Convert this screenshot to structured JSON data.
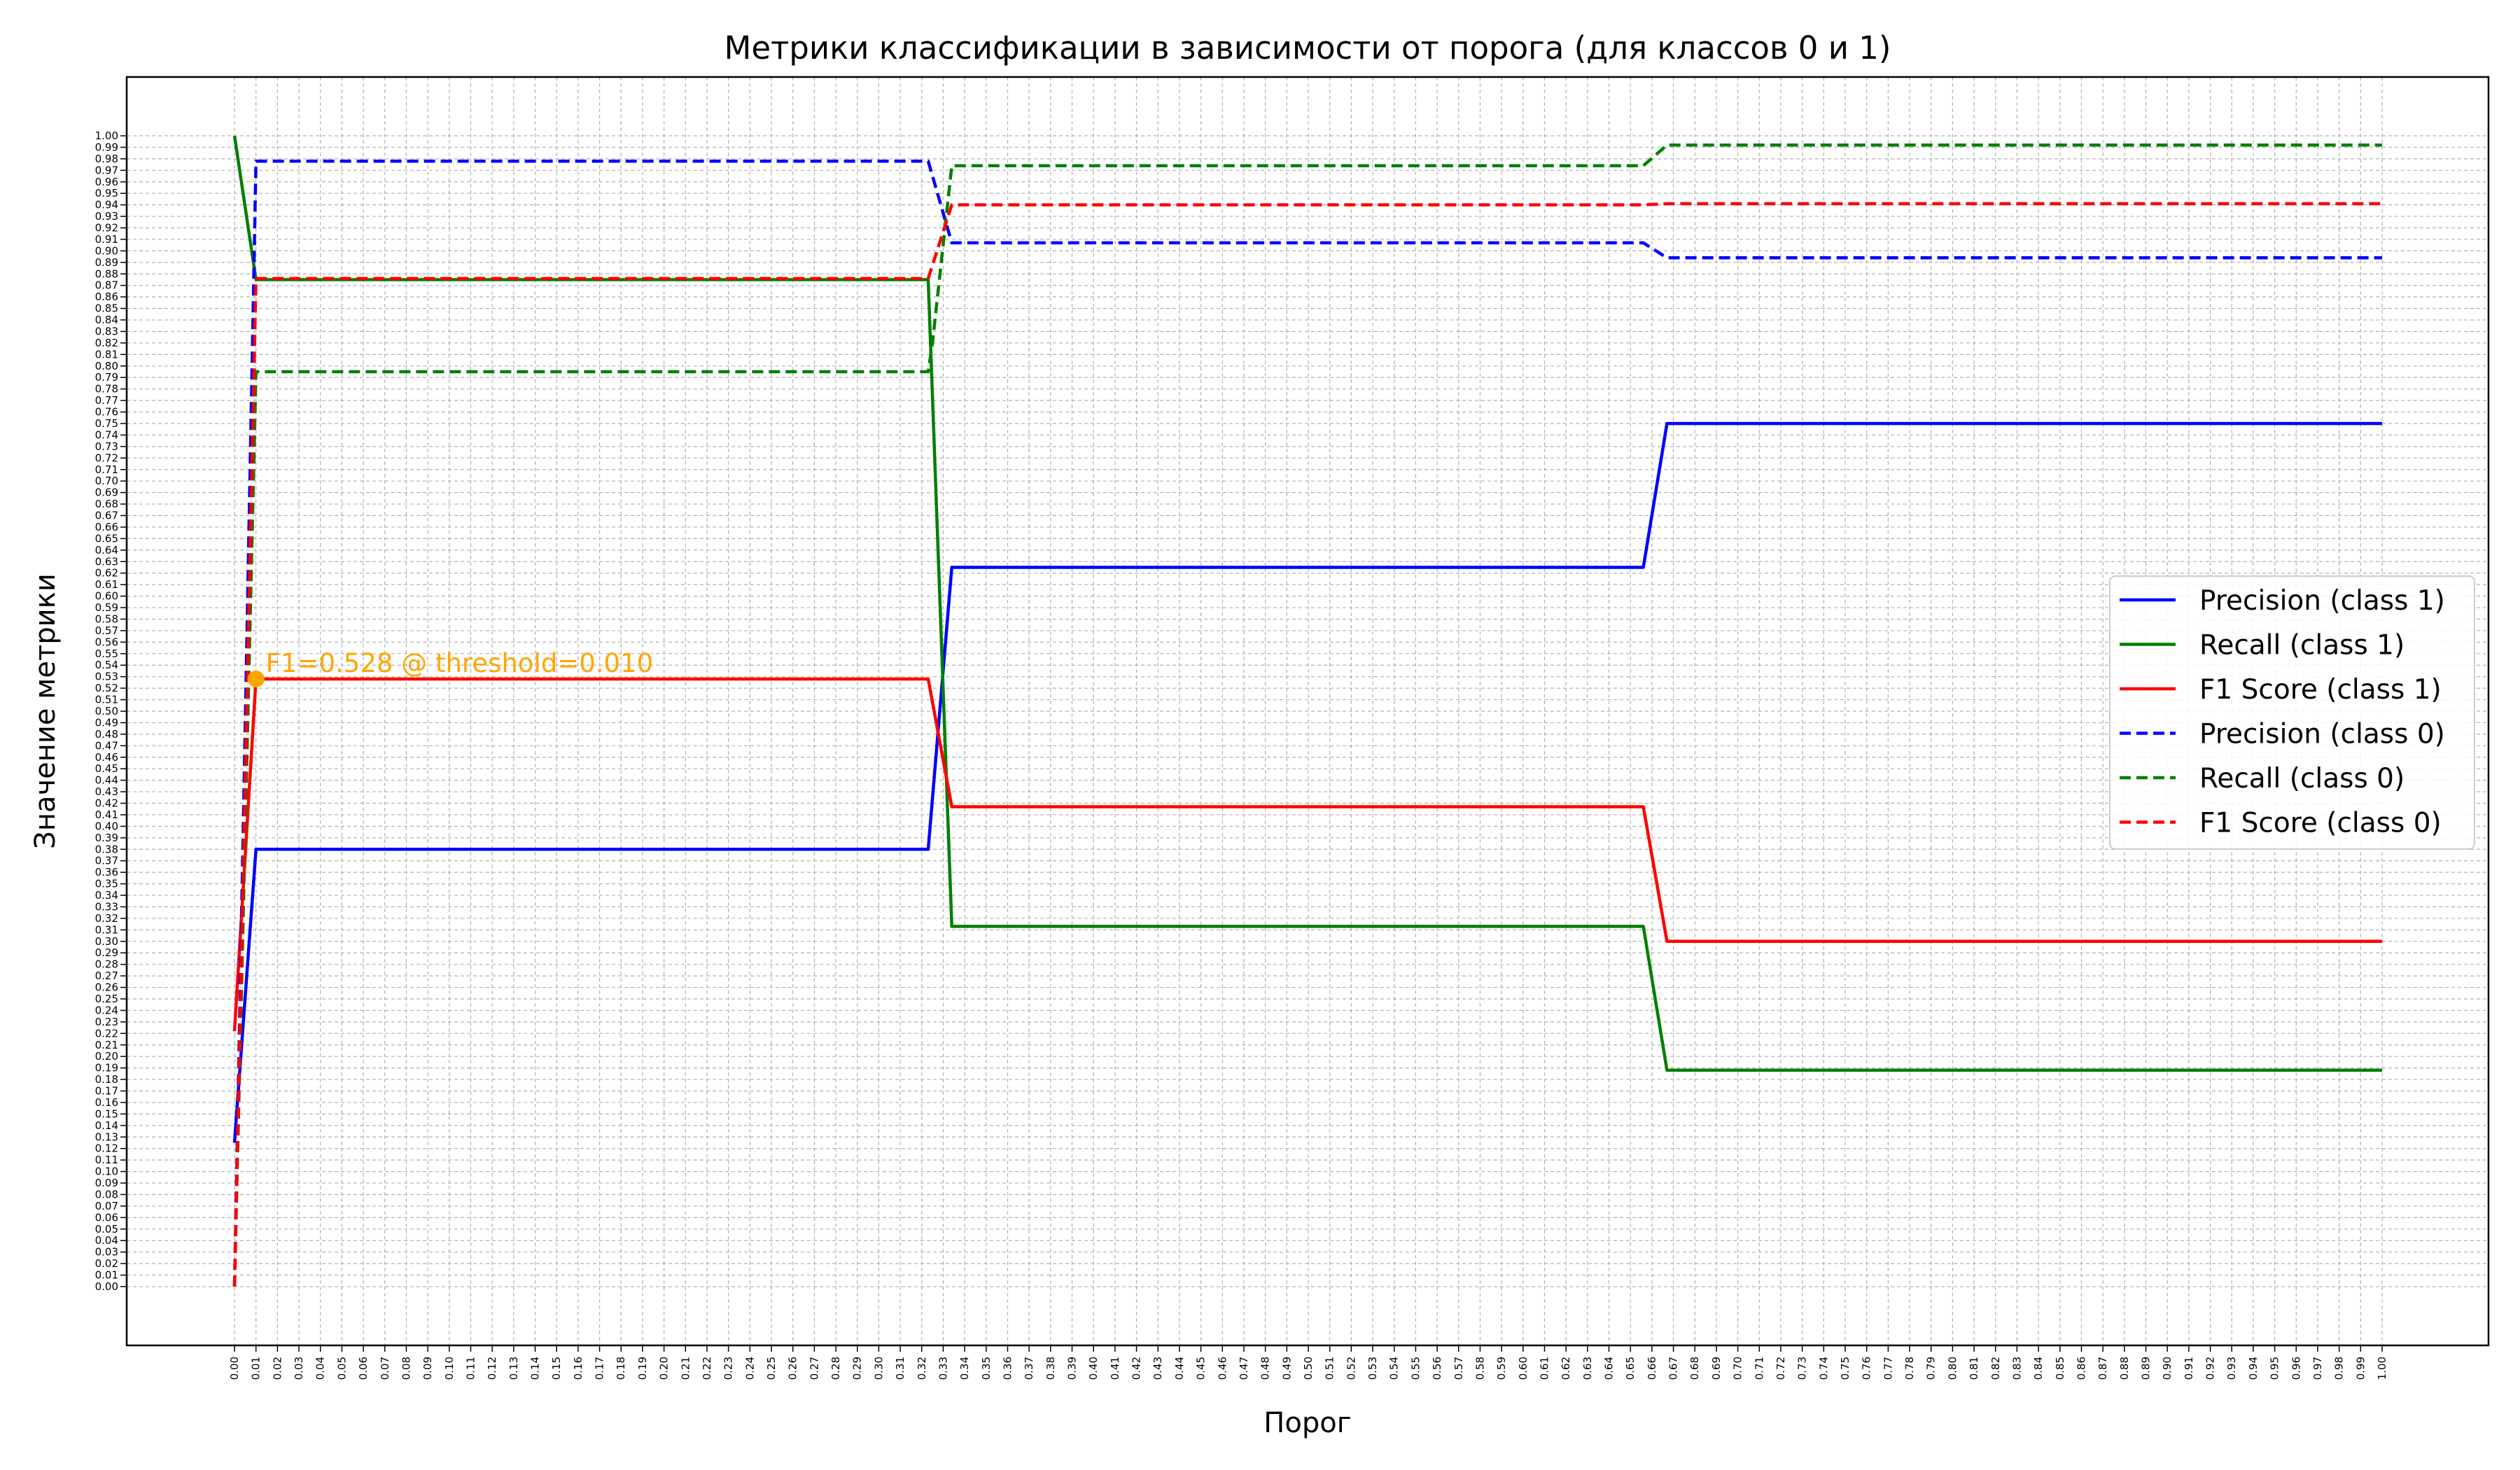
{
  "chart_data": {
    "type": "line",
    "title": "Метрики классификации в зависимости от порога (для классов 0 и 1)",
    "xlabel": "Порог",
    "ylabel": "Значение метрики",
    "xlim": [
      0.0,
      1.0
    ],
    "ylim": [
      0.0,
      1.0
    ],
    "x_tick_step": 0.01,
    "y_tick_step": 0.01,
    "grid": true,
    "legend_position": "right",
    "series": [
      {
        "name": "Precision (class 1)",
        "color": "#0000ff",
        "style": "solid",
        "x": [
          0.0,
          0.01,
          0.323,
          0.334,
          0.656,
          0.667,
          1.0
        ],
        "y": [
          0.125,
          0.38,
          0.38,
          0.625,
          0.625,
          0.75,
          0.75
        ]
      },
      {
        "name": "Recall (class 1)",
        "color": "#008000",
        "style": "solid",
        "x": [
          0.0,
          0.01,
          0.323,
          0.334,
          0.656,
          0.667,
          1.0
        ],
        "y": [
          1.0,
          0.875,
          0.875,
          0.313,
          0.313,
          0.188,
          0.188
        ]
      },
      {
        "name": "F1 Score (class 1)",
        "color": "#ff0000",
        "style": "solid",
        "x": [
          0.0,
          0.01,
          0.323,
          0.334,
          0.656,
          0.667,
          1.0
        ],
        "y": [
          0.222,
          0.528,
          0.528,
          0.417,
          0.417,
          0.3,
          0.3
        ]
      },
      {
        "name": "Precision (class 0)",
        "color": "#0000ff",
        "style": "dashed",
        "x": [
          0.0,
          0.01,
          0.323,
          0.334,
          0.656,
          0.667,
          1.0
        ],
        "y": [
          0.0,
          0.978,
          0.978,
          0.907,
          0.907,
          0.894,
          0.894
        ]
      },
      {
        "name": "Recall (class 0)",
        "color": "#008000",
        "style": "dashed",
        "x": [
          0.0,
          0.01,
          0.323,
          0.325,
          0.334,
          0.656,
          0.667,
          1.0
        ],
        "y": [
          0.0,
          0.795,
          0.795,
          0.82,
          0.974,
          0.974,
          0.992,
          0.992
        ]
      },
      {
        "name": "F1 Score (class 0)",
        "color": "#ff0000",
        "style": "dashed",
        "x": [
          0.0,
          0.01,
          0.323,
          0.334,
          0.656,
          0.667,
          1.0
        ],
        "y": [
          0.0,
          0.876,
          0.876,
          0.94,
          0.94,
          0.941,
          0.941
        ]
      }
    ],
    "annotations": [
      {
        "text": "F1=0.528 @ threshold=0.010",
        "x": 0.01,
        "y": 0.528,
        "color": "#ffa500"
      }
    ]
  }
}
